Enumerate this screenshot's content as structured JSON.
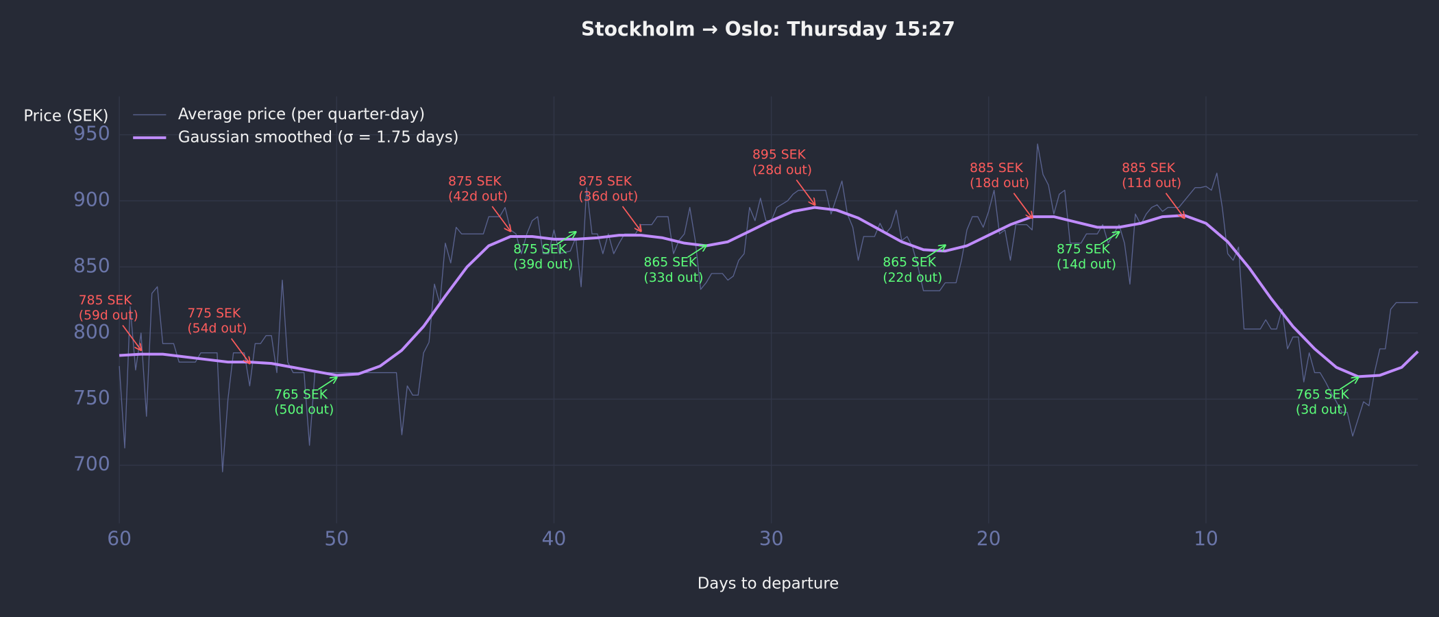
{
  "chart_data": {
    "type": "line",
    "title": "Stockholm → Oslo: Thursday 15:27",
    "x_label": "Days to departure",
    "y_label": "Price (SEK)",
    "xlim": [
      60,
      0.25
    ],
    "ylim": [
      656,
      979
    ],
    "xticks": [
      60,
      50,
      40,
      30,
      20,
      10
    ],
    "yticks": [
      700,
      750,
      800,
      850,
      900,
      950
    ],
    "grid": true,
    "legend": "upper left",
    "series": [
      {
        "name": "Average price (per quarter-day)",
        "color": "#5a6390",
        "width": 1,
        "x": [
          60,
          59.75,
          59.5,
          59.25,
          59,
          58.75,
          58.5,
          58.25,
          58,
          57.5,
          57.25,
          56.5,
          56.25,
          55.5,
          55.25,
          55,
          54.75,
          54.25,
          54,
          53.75,
          53.5,
          53.25,
          53,
          52.75,
          52.5,
          52.25,
          52,
          51.5,
          51.25,
          51,
          47.25,
          47,
          46.75,
          46.5,
          46.25,
          46,
          45.75,
          45.5,
          45.25,
          45,
          44.75,
          44.5,
          44.25,
          43.25,
          43,
          42.5,
          42.25,
          42,
          41.75,
          41.5,
          41.25,
          41,
          40.75,
          40.5,
          40.25,
          40,
          39.75,
          39.25,
          39,
          38.75,
          38.5,
          38.25,
          38,
          37.75,
          37.5,
          37.25,
          37,
          36.75,
          36.25,
          36,
          35.5,
          35.25,
          34.75,
          34.5,
          34.25,
          34,
          33.75,
          33.5,
          33.25,
          33,
          32.75,
          32.25,
          32,
          31.75,
          31.5,
          31.25,
          31,
          30.75,
          30.5,
          30.25,
          30,
          29.75,
          29.25,
          29,
          28.75,
          27.5,
          27.25,
          26.75,
          26.5,
          26.25,
          26,
          25.75,
          25.25,
          25,
          24.75,
          24.5,
          24.25,
          24,
          23.75,
          23.5,
          23.25,
          23,
          22.25,
          22,
          21.5,
          21.25,
          21,
          20.75,
          20.5,
          20.25,
          20,
          19.75,
          19.5,
          19.25,
          19,
          18.75,
          18.25,
          18,
          17.75,
          17.5,
          17.25,
          17,
          16.75,
          16.5,
          16.25,
          15.75,
          15.5,
          15.25,
          15,
          14.75,
          14.5,
          14.25,
          14,
          13.75,
          13.5,
          13.25,
          13,
          12.75,
          12.5,
          12.25,
          12,
          11.75,
          11.25,
          11,
          10.75,
          10.5,
          10.25,
          10,
          9.75,
          9.5,
          9.25,
          9,
          8.75,
          8.5,
          8.25,
          7.5,
          7.25,
          7,
          6.75,
          6.5,
          6.25,
          6,
          5.75,
          5.5,
          5.25,
          5,
          4.75,
          4.5,
          4.25,
          4,
          3.75,
          3.5,
          3.25,
          3,
          2.75,
          2.5,
          2.25,
          2,
          1.75,
          1.5,
          1.25,
          0.25
        ],
        "values": [
          775,
          713,
          820,
          772,
          800,
          737,
          830,
          835,
          792,
          792,
          778,
          778,
          785,
          785,
          695,
          750,
          785,
          785,
          760,
          792,
          792,
          798,
          798,
          770,
          840,
          778,
          770,
          770,
          715,
          770,
          770,
          723,
          760,
          753,
          753,
          785,
          793,
          837,
          822,
          868,
          853,
          880,
          875,
          875,
          888,
          888,
          895,
          878,
          875,
          860,
          875,
          885,
          888,
          860,
          860,
          878,
          860,
          862,
          872,
          835,
          910,
          875,
          875,
          860,
          875,
          860,
          868,
          875,
          875,
          882,
          882,
          888,
          888,
          860,
          870,
          875,
          895,
          870,
          833,
          838,
          845,
          845,
          840,
          843,
          855,
          860,
          895,
          885,
          902,
          885,
          885,
          895,
          900,
          905,
          908,
          908,
          890,
          915,
          890,
          880,
          855,
          873,
          873,
          883,
          875,
          880,
          893,
          870,
          873,
          865,
          850,
          832,
          832,
          838,
          838,
          855,
          878,
          888,
          888,
          880,
          892,
          908,
          875,
          878,
          855,
          882,
          882,
          878,
          943,
          920,
          912,
          890,
          905,
          908,
          868,
          868,
          875,
          875,
          875,
          882,
          868,
          875,
          882,
          868,
          837,
          890,
          882,
          890,
          895,
          897,
          892,
          895,
          895,
          900,
          905,
          910,
          910,
          911,
          908,
          921,
          895,
          860,
          855,
          865,
          803,
          803,
          810,
          803,
          803,
          818,
          788,
          797,
          797,
          763,
          785,
          770,
          770,
          763,
          755,
          748,
          740,
          740,
          722,
          735,
          748,
          745,
          770,
          788,
          788,
          818,
          823,
          823
        ]
      },
      {
        "name": "Gaussian smoothed (σ = 1.75 days)",
        "color": "#c08cff",
        "width": 3,
        "x": [
          60,
          59,
          58,
          57,
          56,
          55,
          54,
          53,
          52,
          51,
          50,
          49,
          48,
          47,
          46,
          45,
          44,
          43,
          42,
          41,
          40,
          39,
          38,
          37,
          36,
          35,
          34,
          33,
          32,
          31,
          30,
          29,
          28,
          27,
          26,
          25,
          24,
          23,
          22,
          21,
          20,
          19,
          18,
          17,
          16,
          15,
          14,
          13,
          12,
          11,
          10,
          9,
          8,
          7,
          6,
          5,
          4,
          3,
          2,
          1,
          0.25
        ],
        "values": [
          783,
          784,
          784,
          782,
          780,
          778,
          778,
          777,
          774,
          771,
          768,
          769,
          775,
          787,
          805,
          828,
          850,
          866,
          873,
          873,
          871,
          871,
          872,
          874,
          874,
          872,
          868,
          866,
          869,
          877,
          885,
          892,
          895,
          893,
          887,
          878,
          869,
          863,
          862,
          866,
          874,
          882,
          888,
          888,
          884,
          880,
          880,
          883,
          888,
          889,
          883,
          869,
          849,
          826,
          805,
          788,
          774,
          767,
          768,
          774,
          786
        ]
      }
    ],
    "annotations": [
      {
        "x": 59,
        "y": 785,
        "color": "#ff5c5c",
        "kind": "peak",
        "lines": [
          "785 SEK",
          "(59d out)"
        ]
      },
      {
        "x": 54,
        "y": 775,
        "color": "#ff5c5c",
        "kind": "peak",
        "lines": [
          "775 SEK",
          "(54d out)"
        ]
      },
      {
        "x": 50,
        "y": 765,
        "color": "#5cff7a",
        "kind": "trough",
        "lines": [
          "765 SEK",
          "(50d out)"
        ]
      },
      {
        "x": 42,
        "y": 875,
        "color": "#ff5c5c",
        "kind": "peak",
        "lines": [
          "875 SEK",
          "(42d out)"
        ]
      },
      {
        "x": 39,
        "y": 875,
        "color": "#5cff7a",
        "kind": "trough",
        "lines": [
          "875 SEK",
          "(39d out)"
        ]
      },
      {
        "x": 36,
        "y": 875,
        "color": "#ff5c5c",
        "kind": "peak",
        "lines": [
          "875 SEK",
          "(36d out)"
        ]
      },
      {
        "x": 33,
        "y": 865,
        "color": "#5cff7a",
        "kind": "trough",
        "lines": [
          "865 SEK",
          "(33d out)"
        ]
      },
      {
        "x": 28,
        "y": 895,
        "color": "#ff5c5c",
        "kind": "peak",
        "lines": [
          "895 SEK",
          "(28d out)"
        ]
      },
      {
        "x": 22,
        "y": 865,
        "color": "#5cff7a",
        "kind": "trough",
        "lines": [
          "865 SEK",
          "(22d out)"
        ]
      },
      {
        "x": 18,
        "y": 885,
        "color": "#ff5c5c",
        "kind": "peak",
        "lines": [
          "885 SEK",
          "(18d out)"
        ]
      },
      {
        "x": 14,
        "y": 875,
        "color": "#5cff7a",
        "kind": "trough",
        "lines": [
          "875 SEK",
          "(14d out)"
        ]
      },
      {
        "x": 11,
        "y": 885,
        "color": "#ff5c5c",
        "kind": "peak",
        "lines": [
          "885 SEK",
          "(11d out)"
        ]
      },
      {
        "x": 3,
        "y": 765,
        "color": "#5cff7a",
        "kind": "trough",
        "lines": [
          "765 SEK",
          "(3d out)"
        ]
      }
    ]
  }
}
